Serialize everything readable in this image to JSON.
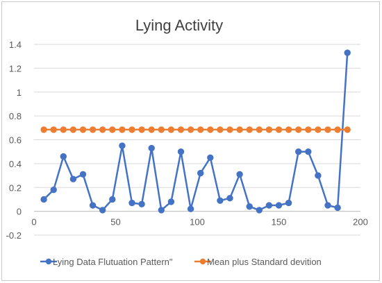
{
  "chart_data": {
    "type": "line",
    "title": "Lying  Activity",
    "xlabel": "",
    "ylabel": "",
    "xlim": [
      0,
      200
    ],
    "ylim": [
      -0.2,
      1.4
    ],
    "x_ticks": [
      0,
      50,
      100,
      150,
      200
    ],
    "y_ticks": [
      -0.2,
      0,
      0.2,
      0.4,
      0.6,
      0.8,
      1,
      1.2,
      1.4
    ],
    "y_tick_labels": [
      "-0.2",
      "0",
      "0.2",
      "0.4",
      "0.6",
      "0.8",
      "1",
      "1.2",
      "1.4"
    ],
    "x_tick_labels": [
      "0",
      "50",
      "100",
      "150",
      "200"
    ],
    "grid": {
      "horizontal": true,
      "vertical": false
    },
    "legend_position": "bottom",
    "series": [
      {
        "name": "Lying  Data Flutuation Pattern\"",
        "color": "#4472C4",
        "marker": "circle",
        "x": [
          6,
          12,
          18,
          24,
          30,
          36,
          42,
          48,
          54,
          60,
          66,
          72,
          78,
          84,
          90,
          96,
          102,
          108,
          114,
          120,
          126,
          132,
          138,
          144,
          150,
          156,
          162,
          168,
          174,
          180,
          186,
          192
        ],
        "y": [
          0.1,
          0.18,
          0.46,
          0.27,
          0.31,
          0.05,
          0.01,
          0.1,
          0.55,
          0.07,
          0.06,
          0.53,
          0.01,
          0.08,
          0.5,
          0.02,
          0.32,
          0.45,
          0.09,
          0.11,
          0.31,
          0.04,
          0.01,
          0.05,
          0.05,
          0.07,
          0.5,
          0.5,
          0.3,
          0.05,
          0.03,
          1.33
        ]
      },
      {
        "name": "Mean plus Standard devition",
        "color": "#ED7D31",
        "marker": "circle",
        "x": [
          6,
          12,
          18,
          24,
          30,
          36,
          42,
          48,
          54,
          60,
          66,
          72,
          78,
          84,
          90,
          96,
          102,
          108,
          114,
          120,
          126,
          132,
          138,
          144,
          150,
          156,
          162,
          168,
          174,
          180,
          186,
          192
        ],
        "y": [
          0.685,
          0.685,
          0.685,
          0.685,
          0.685,
          0.685,
          0.685,
          0.685,
          0.685,
          0.685,
          0.685,
          0.685,
          0.685,
          0.685,
          0.685,
          0.685,
          0.685,
          0.685,
          0.685,
          0.685,
          0.685,
          0.685,
          0.685,
          0.685,
          0.685,
          0.685,
          0.685,
          0.685,
          0.685,
          0.685,
          0.685,
          0.685
        ]
      }
    ]
  }
}
